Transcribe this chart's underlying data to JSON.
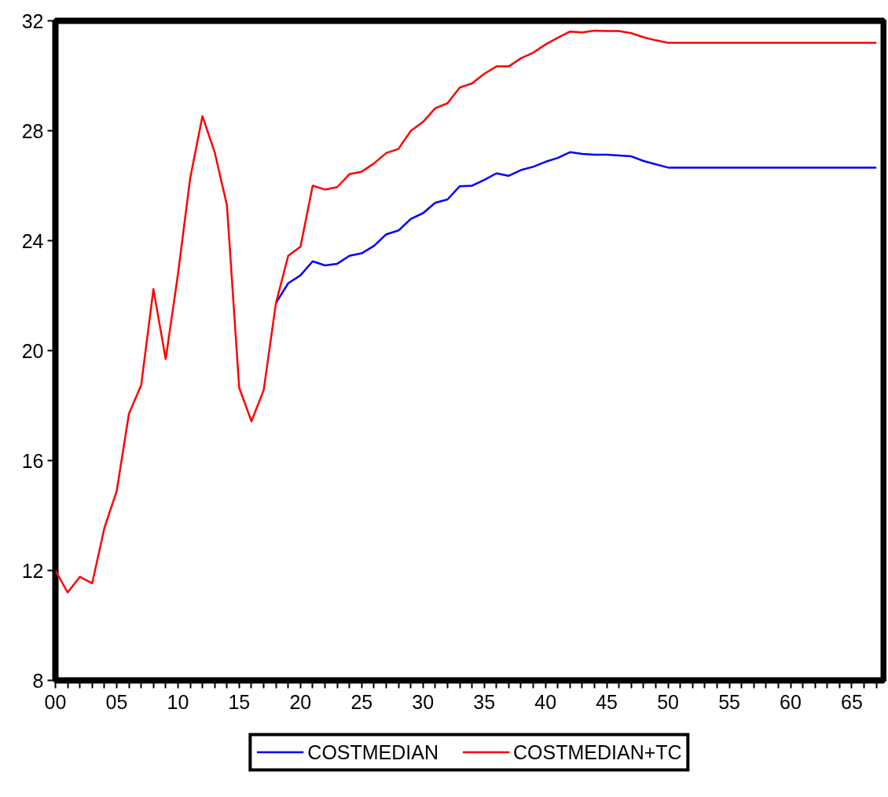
{
  "chart_data": {
    "type": "line",
    "x": [
      0,
      1,
      2,
      3,
      4,
      5,
      6,
      7,
      8,
      9,
      10,
      11,
      12,
      13,
      14,
      15,
      16,
      17,
      18,
      19,
      20,
      21,
      22,
      23,
      24,
      25,
      26,
      27,
      28,
      29,
      30,
      31,
      32,
      33,
      34,
      35,
      36,
      37,
      38,
      39,
      40,
      41,
      42,
      43,
      44,
      45,
      46,
      47,
      48,
      49,
      50,
      51,
      52,
      53,
      54,
      55,
      56,
      57,
      58,
      59,
      60,
      61,
      62,
      63,
      64,
      65,
      66,
      67
    ],
    "series": [
      {
        "name": "COSTMEDIAN",
        "color": "#0000ff",
        "values": [
          null,
          null,
          null,
          null,
          null,
          null,
          null,
          null,
          null,
          null,
          null,
          null,
          null,
          null,
          null,
          null,
          null,
          null,
          21.73,
          22.45,
          22.74,
          23.25,
          23.1,
          23.16,
          23.45,
          23.54,
          23.81,
          24.23,
          24.37,
          24.79,
          25.0,
          25.38,
          25.5,
          25.98,
          26.0,
          26.21,
          26.45,
          26.36,
          26.57,
          26.69,
          26.87,
          27.01,
          27.22,
          27.16,
          27.13,
          27.13,
          27.1,
          27.07,
          26.9,
          26.78,
          26.66,
          26.66,
          26.66,
          26.66,
          26.66,
          26.66,
          26.66,
          26.66,
          26.66,
          26.66,
          26.66,
          26.66,
          26.66,
          26.66,
          26.66,
          26.66,
          26.66,
          26.66
        ]
      },
      {
        "name": "COSTMEDIAN+TC",
        "color": "#ff0000",
        "values": [
          12.0,
          11.2,
          11.77,
          11.53,
          13.55,
          14.88,
          17.7,
          18.74,
          22.24,
          19.69,
          22.77,
          26.27,
          28.53,
          27.22,
          25.29,
          18.65,
          17.43,
          18.56,
          21.73,
          23.45,
          23.78,
          26.0,
          25.86,
          25.95,
          26.42,
          26.51,
          26.81,
          27.19,
          27.34,
          27.99,
          28.32,
          28.82,
          29.0,
          29.57,
          29.72,
          30.07,
          30.34,
          30.34,
          30.64,
          30.84,
          31.14,
          31.38,
          31.61,
          31.58,
          31.64,
          31.63,
          31.63,
          31.55,
          31.4,
          31.29,
          31.2,
          31.2,
          31.2,
          31.2,
          31.2,
          31.2,
          31.2,
          31.2,
          31.2,
          31.2,
          31.2,
          31.2,
          31.2,
          31.2,
          31.2,
          31.2,
          31.2,
          31.2
        ]
      }
    ],
    "xlim": [
      0,
      67.6
    ],
    "xticks": [
      {
        "value": 0,
        "label": "00"
      },
      {
        "value": 1,
        "label": null
      },
      {
        "value": 2,
        "label": null
      },
      {
        "value": 3,
        "label": null
      },
      {
        "value": 4,
        "label": null
      },
      {
        "value": 5,
        "label": "05"
      },
      {
        "value": 6,
        "label": null
      },
      {
        "value": 7,
        "label": null
      },
      {
        "value": 8,
        "label": null
      },
      {
        "value": 9,
        "label": null
      },
      10,
      {
        "value": 11,
        "label": null
      },
      {
        "value": 12,
        "label": null
      },
      {
        "value": 13,
        "label": null
      },
      {
        "value": 14,
        "label": null
      },
      15,
      {
        "value": 16,
        "label": null
      },
      {
        "value": 17,
        "label": null
      },
      {
        "value": 18,
        "label": null
      },
      {
        "value": 19,
        "label": null
      },
      20,
      {
        "value": 21,
        "label": null
      },
      {
        "value": 22,
        "label": null
      },
      {
        "value": 23,
        "label": null
      },
      {
        "value": 24,
        "label": null
      },
      25,
      {
        "value": 26,
        "label": null
      },
      {
        "value": 27,
        "label": null
      },
      {
        "value": 28,
        "label": null
      },
      {
        "value": 29,
        "label": null
      },
      30,
      {
        "value": 31,
        "label": null
      },
      {
        "value": 32,
        "label": null
      },
      {
        "value": 33,
        "label": null
      },
      {
        "value": 34,
        "label": null
      },
      35,
      {
        "value": 36,
        "label": null
      },
      {
        "value": 37,
        "label": null
      },
      {
        "value": 38,
        "label": null
      },
      {
        "value": 39,
        "label": null
      },
      40,
      {
        "value": 41,
        "label": null
      },
      {
        "value": 42,
        "label": null
      },
      {
        "value": 43,
        "label": null
      },
      {
        "value": 44,
        "label": null
      },
      45,
      {
        "value": 46,
        "label": null
      },
      {
        "value": 47,
        "label": null
      },
      {
        "value": 48,
        "label": null
      },
      {
        "value": 49,
        "label": null
      },
      50,
      {
        "value": 51,
        "label": null
      },
      {
        "value": 52,
        "label": null
      },
      {
        "value": 53,
        "label": null
      },
      {
        "value": 54,
        "label": null
      },
      55,
      {
        "value": 56,
        "label": null
      },
      {
        "value": 57,
        "label": null
      },
      {
        "value": 58,
        "label": null
      },
      {
        "value": 59,
        "label": null
      },
      60,
      {
        "value": 61,
        "label": null
      },
      {
        "value": 62,
        "label": null
      },
      {
        "value": 63,
        "label": null
      },
      {
        "value": 64,
        "label": null
      },
      65,
      {
        "value": 66,
        "label": null
      },
      {
        "value": 67,
        "label": null
      }
    ],
    "ylim": [
      8,
      32
    ],
    "yticks": [
      8,
      12,
      16,
      20,
      24,
      28,
      32
    ],
    "grid": false,
    "legend": "bottom",
    "line_style": "solid"
  }
}
